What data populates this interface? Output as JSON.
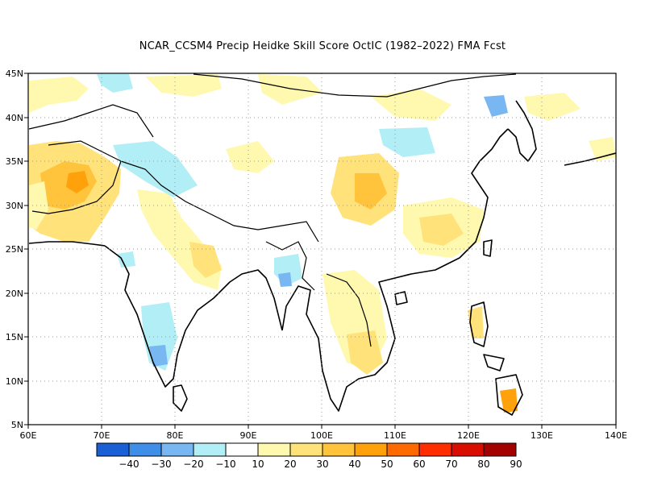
{
  "title": "NCAR_CCSM4 Precip Heidke Skill Score OctIC (1982–2022) FMA Fcst",
  "map": {
    "lon_labels": [
      "60E",
      "70E",
      "80E",
      "90E",
      "100E",
      "110E",
      "120E",
      "130E",
      "140E"
    ],
    "lat_labels": [
      "45N",
      "40N",
      "35N",
      "30N",
      "25N",
      "20N",
      "15N",
      "10N",
      "5N"
    ],
    "grid": "dotted"
  },
  "colorbar": {
    "colors": [
      "#1a5fd6",
      "#3f8ee8",
      "#78b7f2",
      "#b2eef5",
      "#ffffff",
      "#fff9b0",
      "#ffe27a",
      "#ffc43c",
      "#ffa10a",
      "#ff6a00",
      "#ff2d00",
      "#d80d00",
      "#a30000"
    ],
    "labels": [
      "−40",
      "−30",
      "−20",
      "−10",
      "10",
      "20",
      "30",
      "40",
      "50",
      "60",
      "70",
      "80",
      "90"
    ]
  }
}
